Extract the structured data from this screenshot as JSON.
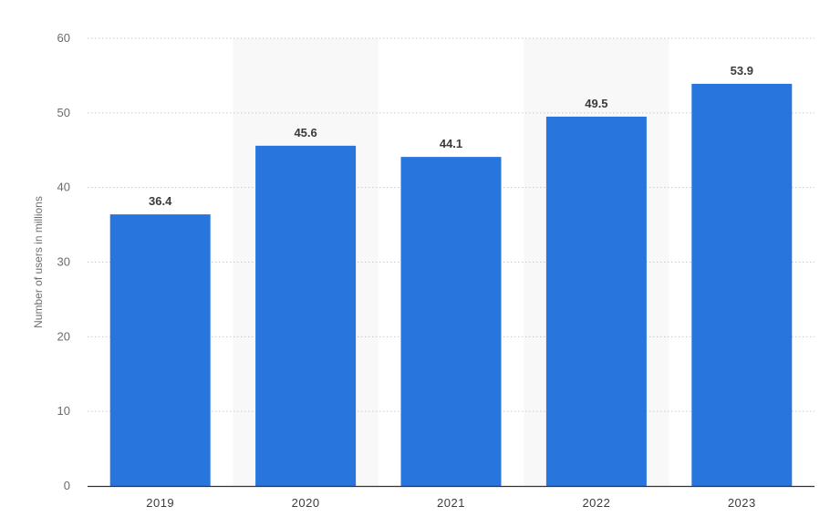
{
  "chart_data": {
    "type": "bar",
    "categories": [
      "2019",
      "2020",
      "2021",
      "2022",
      "2023"
    ],
    "values": [
      36.4,
      45.6,
      44.1,
      49.5,
      53.9
    ],
    "data_labels": [
      "36.4",
      "45.6",
      "44.1",
      "49.5",
      "53.9"
    ],
    "title": "",
    "xlabel": "",
    "ylabel": "Number of users in millions",
    "ylim": [
      0,
      60
    ],
    "yticks": [
      0,
      10,
      20,
      30,
      40,
      50,
      60
    ],
    "grid": true,
    "bar_color": "#2876dd",
    "alt_band_color": "#f8f8f8",
    "grid_color": "#c9c9c9"
  }
}
